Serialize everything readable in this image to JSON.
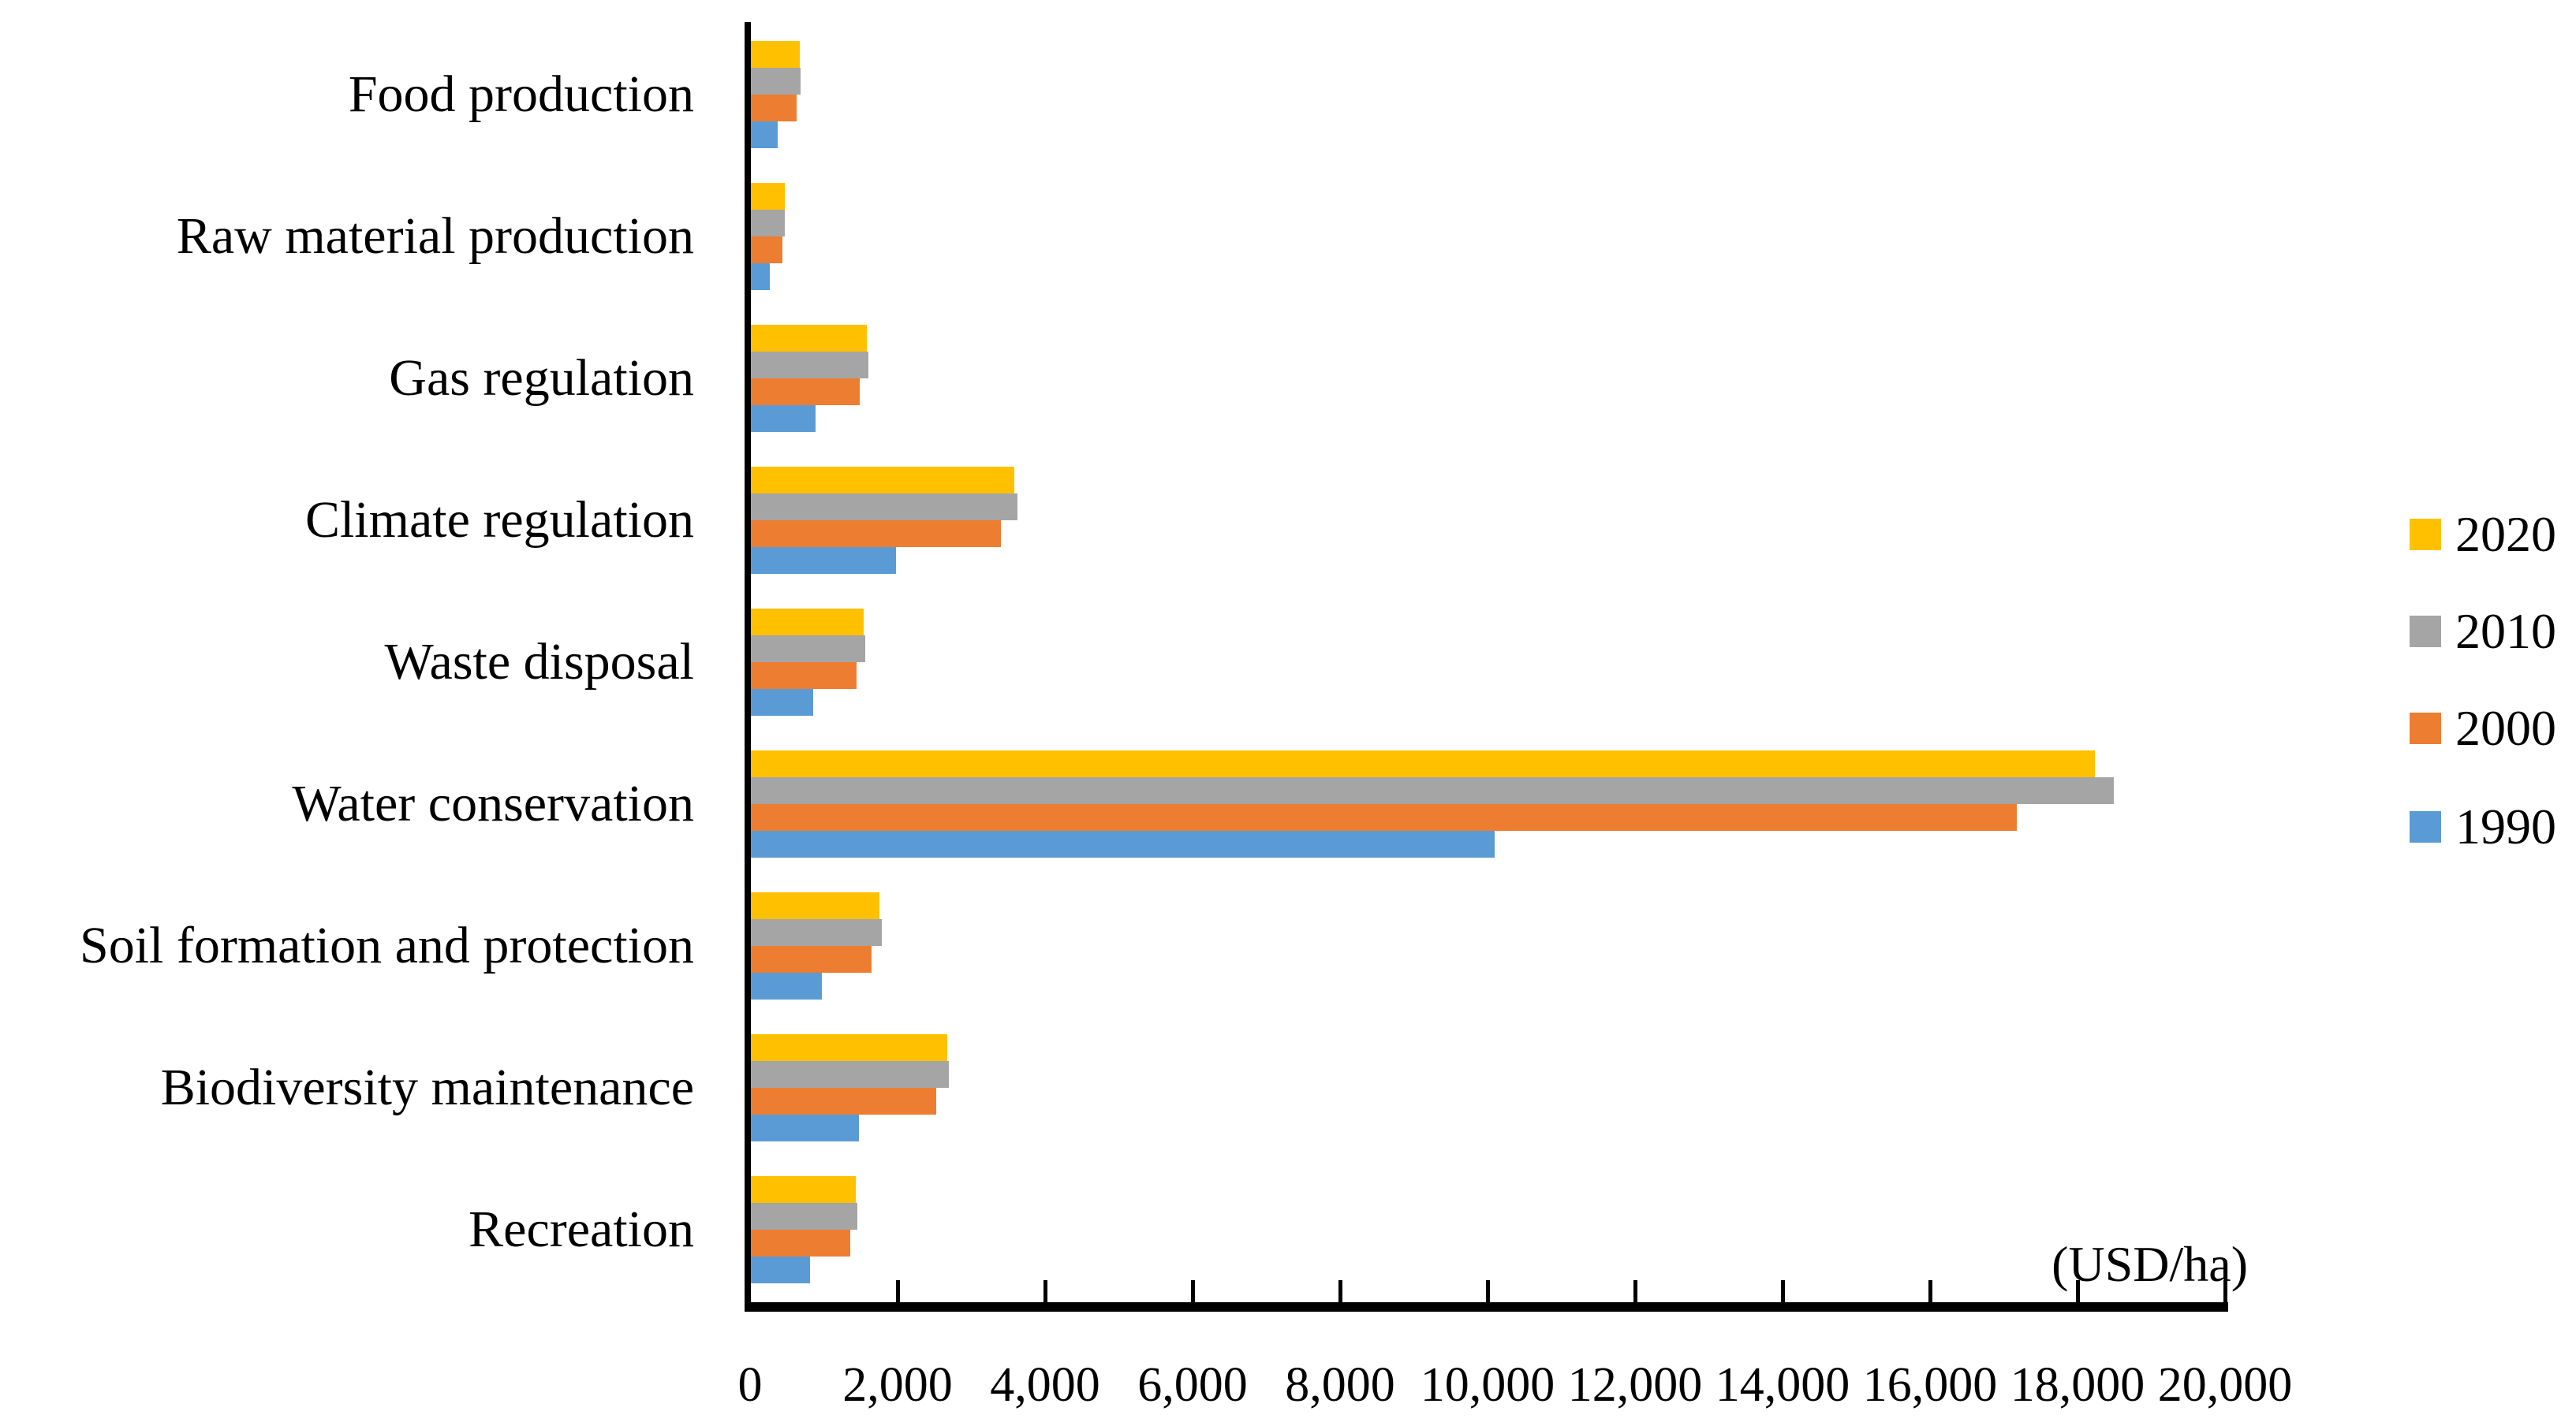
{
  "chart_data": {
    "type": "bar",
    "orientation": "horizontal",
    "title": "",
    "xlabel": "(USD/ha)",
    "ylabel": "",
    "xlim": [
      0,
      20000
    ],
    "x_tick_interval": 2000,
    "x_ticks": [
      0,
      2000,
      4000,
      6000,
      8000,
      10000,
      12000,
      14000,
      16000,
      18000,
      20000
    ],
    "x_tick_labels": [
      "0",
      "2,000",
      "4,000",
      "6,000",
      "8,000",
      "10,000",
      "12,000",
      "14,000",
      "16,000",
      "18,000",
      "20,000"
    ],
    "grid": false,
    "legend_position": "right",
    "legend_order": [
      "2020",
      "2010",
      "2000",
      "1990"
    ],
    "categories": [
      "Food production",
      "Raw material production",
      "Gas regulation",
      "Climate regulation",
      "Waste disposal",
      "Water conservation",
      "Soil formation and protection",
      "Biodiversity maintenance",
      "Recreation"
    ],
    "series": [
      {
        "name": "2020",
        "color": "#FFC000",
        "values": [
          670,
          470,
          1580,
          3580,
          1540,
          18240,
          1750,
          2670,
          1430
        ]
      },
      {
        "name": "2010",
        "color": "#A5A5A5",
        "values": [
          680,
          475,
          1600,
          3630,
          1560,
          18490,
          1790,
          2700,
          1450
        ]
      },
      {
        "name": "2000",
        "color": "#ED7D31",
        "values": [
          630,
          435,
          1490,
          3400,
          1440,
          17180,
          1650,
          2520,
          1360
        ]
      },
      {
        "name": "1990",
        "color": "#5B9BD5",
        "values": [
          370,
          270,
          890,
          1980,
          860,
          10100,
          970,
          1480,
          810
        ]
      }
    ]
  },
  "colors": {
    "axis": "#000000",
    "text": "#000000",
    "background": "#FFFFFF"
  }
}
